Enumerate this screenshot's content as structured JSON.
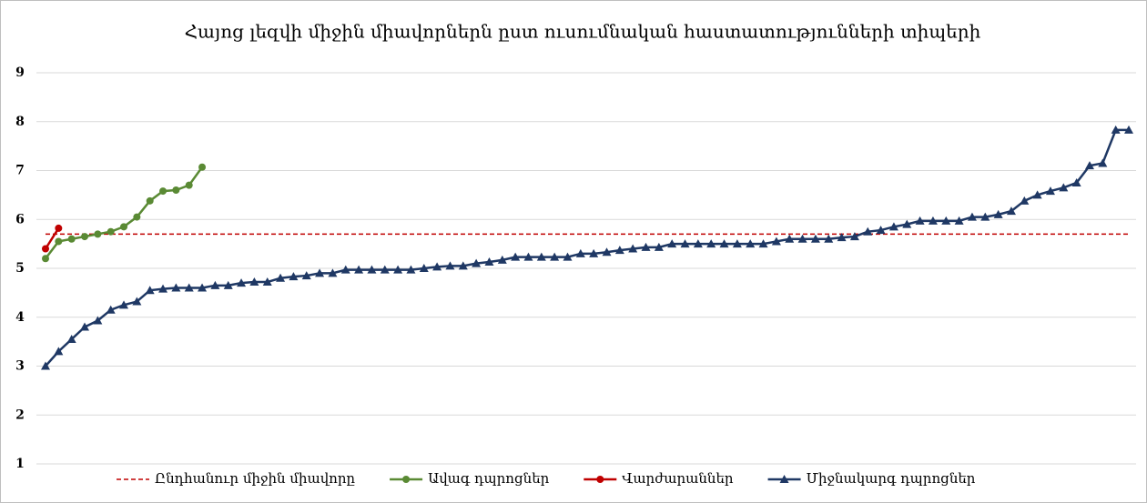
{
  "chart_data": {
    "type": "line",
    "title": "Հայոց լեզվի միջին միավորներն ըստ ուսումնական հաստատությունների տիպերի",
    "ylim": [
      1,
      9
    ],
    "yticks": [
      1,
      2,
      3,
      4,
      5,
      6,
      7,
      8,
      9
    ],
    "grid": true,
    "legend": "bottom",
    "reference_line": {
      "name": "Ընդհանուր միջին միավորը",
      "value": 5.7,
      "color": "#c00000"
    },
    "categories": [
      null,
      null,
      null,
      null,
      null,
      null,
      null,
      null,
      null,
      null,
      null,
      null,
      null,
      null,
      null,
      null,
      null,
      null,
      null,
      null,
      null,
      null,
      null,
      null,
      null,
      null,
      null,
      null,
      null,
      null,
      null,
      null,
      null,
      null,
      null,
      null,
      null,
      null,
      null,
      null,
      null,
      null,
      null,
      null,
      null,
      null,
      null,
      null,
      null,
      null,
      null,
      null,
      null,
      null,
      null,
      null,
      null,
      null,
      null,
      null,
      null,
      null,
      null,
      null,
      null,
      null,
      null,
      null,
      null,
      null,
      null,
      null,
      null,
      null,
      null,
      null,
      null,
      null,
      null,
      null,
      null,
      null,
      null,
      null
    ],
    "series": [
      {
        "name": "Ավագ դպրոցներ",
        "color": "#5a8a34",
        "marker": "circle",
        "values": [
          5.2,
          5.55,
          5.6,
          5.65,
          5.7,
          5.75,
          5.85,
          6.05,
          6.38,
          6.58,
          6.6,
          6.7,
          7.07,
          null,
          null,
          null,
          null,
          null,
          null,
          null,
          null,
          null,
          null,
          null,
          null,
          null,
          null,
          null,
          null,
          null,
          null,
          null,
          null,
          null,
          null,
          null,
          null,
          null,
          null,
          null,
          null,
          null,
          null,
          null,
          null,
          null,
          null,
          null,
          null,
          null,
          null,
          null,
          null,
          null,
          null,
          null,
          null,
          null,
          null,
          null,
          null,
          null,
          null,
          null,
          null,
          null,
          null,
          null,
          null,
          null,
          null,
          null,
          null,
          null,
          null,
          null,
          null,
          null,
          null,
          null,
          null,
          null,
          null,
          null
        ]
      },
      {
        "name": "Վարժարաններ",
        "color": "#c00000",
        "marker": "circle",
        "values": [
          5.4,
          5.82,
          null,
          null,
          null,
          null,
          null,
          null,
          null,
          null,
          null,
          null,
          null,
          null,
          null,
          null,
          null,
          null,
          null,
          null,
          null,
          null,
          null,
          null,
          null,
          null,
          null,
          null,
          null,
          null,
          null,
          null,
          null,
          null,
          null,
          null,
          null,
          null,
          null,
          null,
          null,
          null,
          null,
          null,
          null,
          null,
          null,
          null,
          null,
          null,
          null,
          null,
          null,
          null,
          null,
          null,
          null,
          null,
          null,
          null,
          null,
          null,
          null,
          null,
          null,
          null,
          null,
          null,
          null,
          null,
          null,
          null,
          null,
          null,
          null,
          null,
          null,
          null,
          null,
          null,
          null,
          null,
          null,
          null
        ]
      },
      {
        "name": "Միջնակարգ դպրոցներ",
        "color": "#1f3864",
        "marker": "triangle",
        "values": [
          3.0,
          3.3,
          3.55,
          3.8,
          3.93,
          4.15,
          4.25,
          4.32,
          4.55,
          4.58,
          4.6,
          4.6,
          4.6,
          4.65,
          4.65,
          4.7,
          4.72,
          4.72,
          4.8,
          4.83,
          4.85,
          4.9,
          4.9,
          4.97,
          4.97,
          4.97,
          4.97,
          4.97,
          4.97,
          5.0,
          5.03,
          5.05,
          5.05,
          5.1,
          5.13,
          5.17,
          5.23,
          5.23,
          5.23,
          5.23,
          5.23,
          5.3,
          5.3,
          5.33,
          5.37,
          5.4,
          5.43,
          5.43,
          5.5,
          5.5,
          5.5,
          5.5,
          5.5,
          5.5,
          5.5,
          5.5,
          5.55,
          5.6,
          5.6,
          5.6,
          5.6,
          5.63,
          5.65,
          5.75,
          5.78,
          5.85,
          5.9,
          5.97,
          5.97,
          5.97,
          5.97,
          6.05,
          6.05,
          6.1,
          6.17,
          6.38,
          6.5,
          6.58,
          6.65,
          6.75,
          7.1,
          7.15,
          7.83,
          7.83
        ]
      }
    ]
  }
}
